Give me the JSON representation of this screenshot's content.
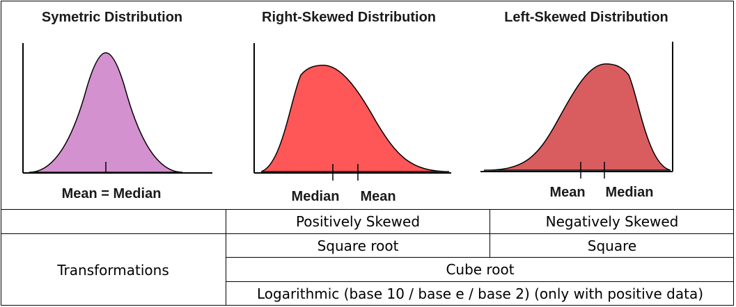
{
  "panels": [
    {
      "title": "Symetric Distribution",
      "labels": [
        "Mean = Median"
      ],
      "fill": "#d491cf"
    },
    {
      "title": "Right-Skewed Distribution",
      "labels": [
        "Median",
        "Mean"
      ],
      "fill": "#ff5757"
    },
    {
      "title": "Left-Skewed Distribution",
      "labels": [
        "Mean",
        "Median"
      ],
      "fill": "#d95d5f"
    }
  ],
  "table": {
    "header_right": "Positively Skewed",
    "header_left": "Negatively Skewed",
    "row_label": "Transformations",
    "positive_transform": "Square root",
    "negative_transform": "Square",
    "shared_transform_1": "Cube root",
    "shared_transform_2": "Logarithmic (base 10 / base e / base 2) (only with positive data)"
  }
}
